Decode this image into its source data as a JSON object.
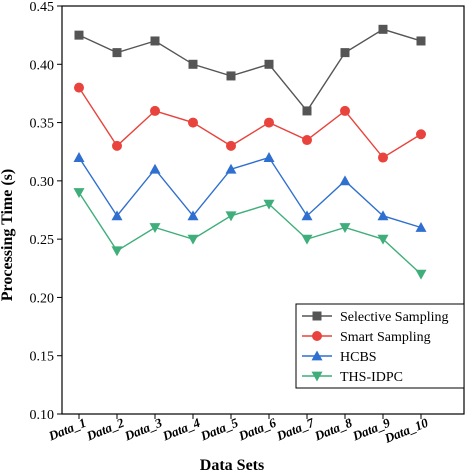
{
  "chart_data": {
    "type": "line",
    "title": "",
    "xlabel": "Data Sets",
    "ylabel": "Processing Time (s)",
    "ylim": [
      0.1,
      0.45
    ],
    "yticks": [
      "0.10",
      "0.15",
      "0.20",
      "0.25",
      "0.30",
      "0.35",
      "0.40",
      "0.45"
    ],
    "categories": [
      "Data_1",
      "Data_2",
      "Data_3",
      "Data_4",
      "Data_5",
      "Data_6",
      "Data_7",
      "Data_8",
      "Data_9",
      "Data_10"
    ],
    "legend_position": "bottom-right",
    "grid": false,
    "series": [
      {
        "name": "Selective Sampling",
        "color": "#555555",
        "marker": "square",
        "values": [
          0.425,
          0.41,
          0.42,
          0.4,
          0.39,
          0.4,
          0.36,
          0.41,
          0.43,
          0.42
        ]
      },
      {
        "name": "Smart Sampling",
        "color": "#e8433c",
        "marker": "circle",
        "values": [
          0.38,
          0.33,
          0.36,
          0.35,
          0.33,
          0.35,
          0.335,
          0.36,
          0.32,
          0.34
        ]
      },
      {
        "name": "HCBS",
        "color": "#2f6fcf",
        "marker": "triangle-up",
        "values": [
          0.32,
          0.27,
          0.31,
          0.27,
          0.31,
          0.32,
          0.27,
          0.3,
          0.27,
          0.26
        ]
      },
      {
        "name": "THS-IDPC",
        "color": "#3fae7a",
        "marker": "triangle-down",
        "values": [
          0.29,
          0.24,
          0.26,
          0.25,
          0.27,
          0.28,
          0.25,
          0.26,
          0.25,
          0.22
        ]
      }
    ]
  }
}
